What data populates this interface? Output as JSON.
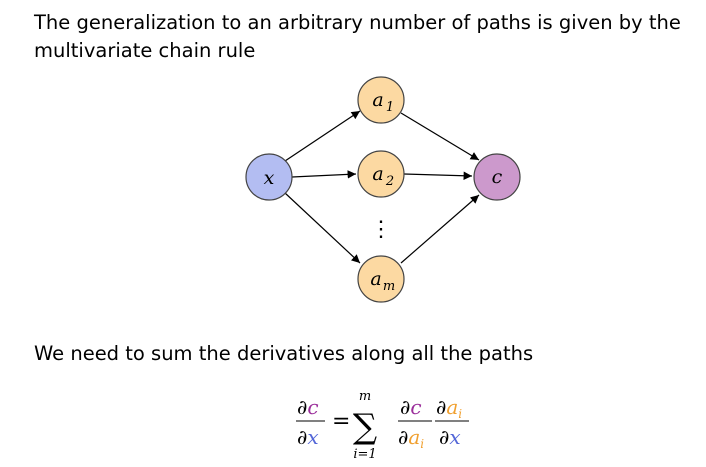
{
  "intro_text": "The generalization to an arbitrary number of paths is given by the multivariate chain rule",
  "sum_text": "We need to sum the derivatives along all the paths",
  "nodes": {
    "x": {
      "label": "x",
      "fill": "#b3bdf2"
    },
    "a1": {
      "label": "a",
      "sub": "1",
      "fill": "#fcd9a2"
    },
    "a2": {
      "label": "a",
      "sub": "2",
      "fill": "#fcd9a2"
    },
    "am": {
      "label": "a",
      "sub": "m",
      "fill": "#fcd9a2"
    },
    "c": {
      "label": "c",
      "fill": "#cc99cc"
    }
  },
  "ellipsis": "⋮",
  "formula": {
    "lhs_num": "∂c",
    "lhs_den": "∂x",
    "equals": "=",
    "sum_symbol": "∑",
    "sum_upper": "m",
    "sum_lower": "i=1",
    "term1_num": "∂c",
    "term1_den": "∂a",
    "term1_den_sub": "i",
    "term2_num": "∂a",
    "term2_num_sub": "i",
    "term2_den": "∂x"
  },
  "colors": {
    "c_color": "#9b2f9b",
    "x_color": "#5568d8",
    "a_color": "#f0a030",
    "stroke": "#444444"
  }
}
